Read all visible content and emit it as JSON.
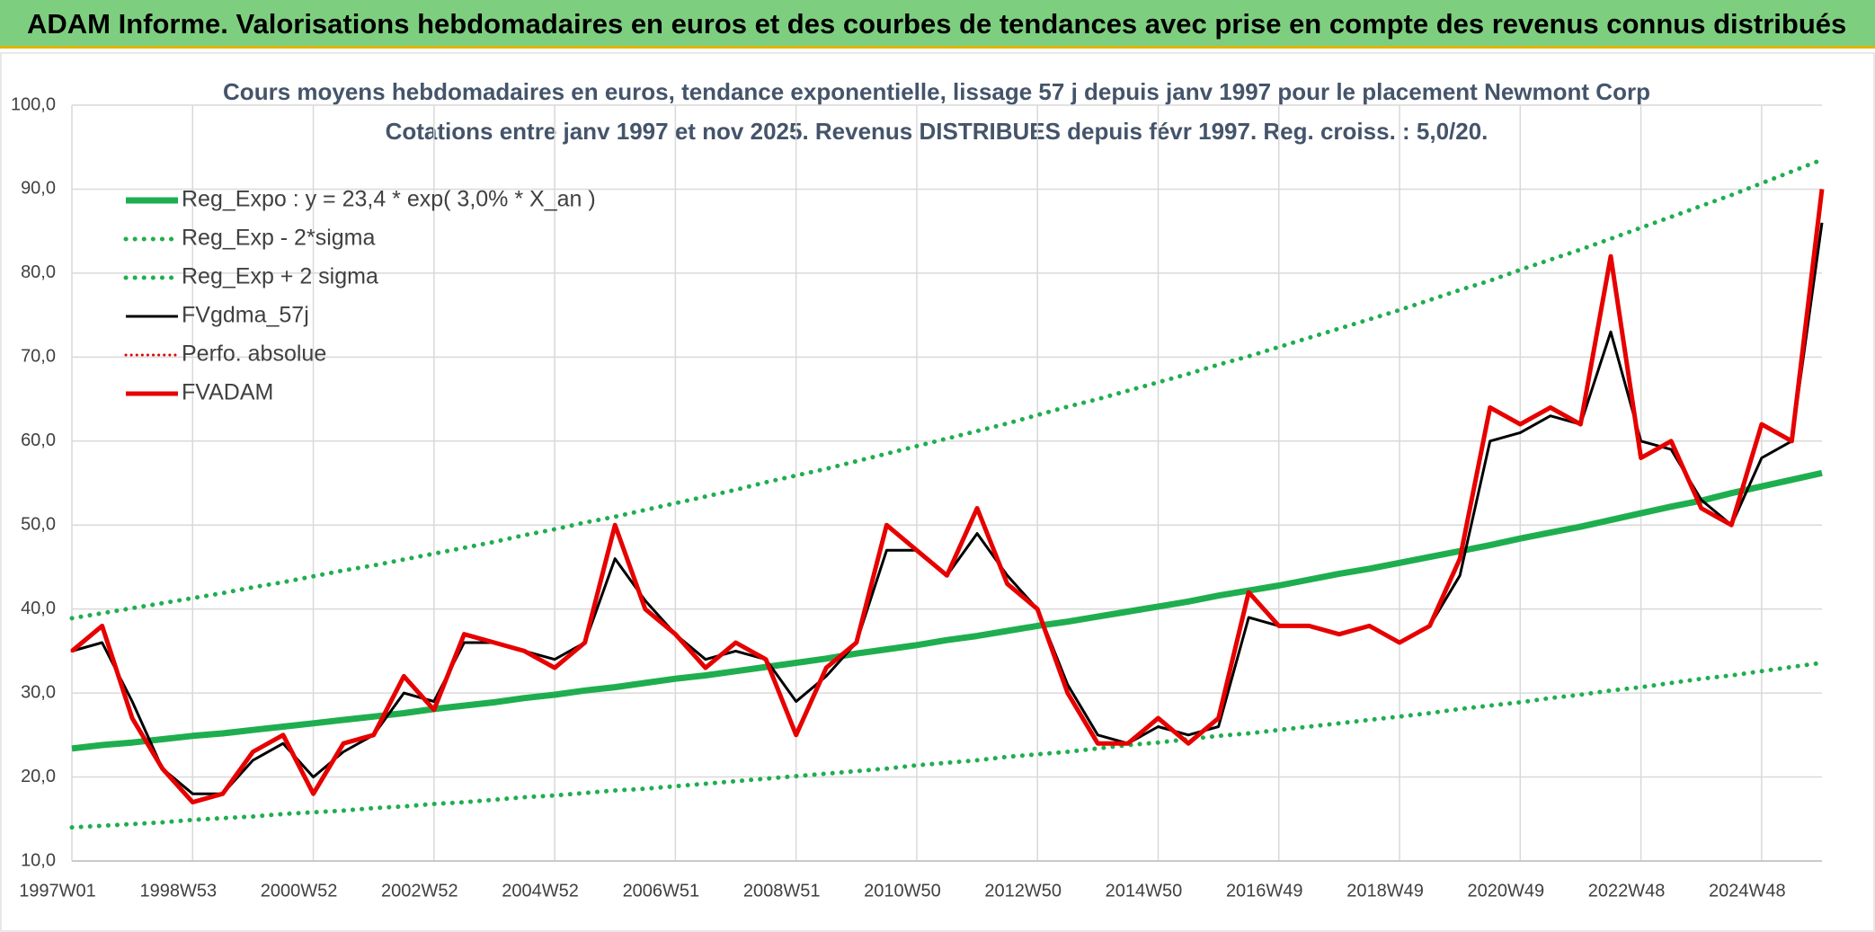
{
  "header": {
    "title": "ADAM Informe. Valorisations hebdomadaires en euros et des courbes de tendances avec prise en compte des revenus connus distribués"
  },
  "chart_data": {
    "type": "line",
    "title": "Cours moyens hebdomadaires en euros, tendance exponentielle, lissage 57 j depuis janv 1997 pour le placement Newmont Corp",
    "subtitle": "Cotations entre janv 1997 et nov 2025. Revenus DISTRIBUES depuis févr 1997. Reg. croiss. : 5,0/20.",
    "categories": [
      "1997W01",
      null,
      null,
      null,
      "1998W53",
      null,
      null,
      null,
      "2000W52",
      null,
      null,
      null,
      "2002W52",
      null,
      null,
      null,
      "2004W52",
      null,
      null,
      null,
      "2006W51",
      null,
      null,
      null,
      "2008W51",
      null,
      null,
      null,
      "2010W50",
      null,
      null,
      null,
      "2012W50",
      null,
      null,
      null,
      "2014W50",
      null,
      null,
      null,
      "2016W49",
      null,
      null,
      null,
      "2018W49",
      null,
      null,
      null,
      "2020W49",
      null,
      null,
      null,
      "2022W48",
      null,
      null,
      null,
      "2024W48",
      null,
      null
    ],
    "ylim": [
      10,
      100
    ],
    "yticks": [
      {
        "value": 10,
        "label": "10,0"
      },
      {
        "value": 20,
        "label": "20,0"
      },
      {
        "value": 30,
        "label": "30,0"
      },
      {
        "value": 40,
        "label": "40,0"
      },
      {
        "value": 50,
        "label": "50,0"
      },
      {
        "value": 60,
        "label": "60,0"
      },
      {
        "value": 70,
        "label": "70,0"
      },
      {
        "value": 80,
        "label": "80,0"
      },
      {
        "value": 90,
        "label": "90,0"
      },
      {
        "value": 100,
        "label": "100,0"
      }
    ],
    "grid": true,
    "legend": "top-left",
    "series": [
      {
        "name": "Reg_Expo : y = 23,4 * exp( 3,0% *  X_an )",
        "color": "#1fae4f",
        "style": "solid",
        "width": 7,
        "values": [
          23.4,
          23.8,
          24.1,
          24.5,
          24.9,
          25.2,
          25.6,
          26.0,
          26.4,
          26.8,
          27.2,
          27.6,
          28.1,
          28.5,
          28.9,
          29.4,
          29.8,
          30.3,
          30.7,
          31.2,
          31.7,
          32.1,
          32.6,
          33.1,
          33.6,
          34.1,
          34.7,
          35.2,
          35.7,
          36.3,
          36.8,
          37.4,
          38.0,
          38.5,
          39.1,
          39.7,
          40.3,
          40.9,
          41.6,
          42.2,
          42.8,
          43.5,
          44.2,
          44.8,
          45.5,
          46.2,
          46.9,
          47.6,
          48.4,
          49.1,
          49.8,
          50.6,
          51.4,
          52.2,
          52.9,
          53.8,
          54.6,
          55.4,
          56.2
        ]
      },
      {
        "name": "Reg_Exp - 2*sigma",
        "color": "#1fae4f",
        "style": "dotted",
        "width": 5,
        "values": [
          14.0,
          14.2,
          14.4,
          14.6,
          14.9,
          15.1,
          15.3,
          15.6,
          15.8,
          16.0,
          16.3,
          16.5,
          16.8,
          17.0,
          17.3,
          17.6,
          17.8,
          18.1,
          18.4,
          18.6,
          18.9,
          19.2,
          19.5,
          19.8,
          20.1,
          20.4,
          20.7,
          21.0,
          21.4,
          21.7,
          22.0,
          22.4,
          22.7,
          23.0,
          23.4,
          23.8,
          24.1,
          24.5,
          24.9,
          25.2,
          25.6,
          26.0,
          26.4,
          26.8,
          27.2,
          27.6,
          28.1,
          28.5,
          28.9,
          29.4,
          29.8,
          30.3,
          30.7,
          31.2,
          31.7,
          32.1,
          32.6,
          33.1,
          33.6
        ]
      },
      {
        "name": "Reg_Exp + 2 sigma",
        "color": "#1fae4f",
        "style": "dotted",
        "width": 5,
        "values": [
          38.9,
          39.5,
          40.1,
          40.7,
          41.3,
          41.9,
          42.6,
          43.2,
          43.9,
          44.6,
          45.2,
          45.9,
          46.6,
          47.3,
          48.0,
          48.8,
          49.5,
          50.3,
          51.0,
          51.8,
          52.6,
          53.4,
          54.2,
          55.1,
          55.9,
          56.7,
          57.6,
          58.5,
          59.4,
          60.3,
          61.2,
          62.1,
          63.1,
          64.1,
          65.0,
          66.0,
          67.0,
          68.0,
          69.1,
          70.1,
          71.2,
          72.3,
          73.4,
          74.5,
          75.6,
          76.8,
          78.0,
          79.1,
          80.4,
          81.6,
          82.8,
          84.1,
          85.4,
          86.7,
          88.0,
          89.3,
          90.7,
          92.1,
          93.5
        ]
      },
      {
        "name": "FVgdma_57j",
        "color": "#000000",
        "style": "solid",
        "width": 3,
        "values": [
          35,
          36,
          29,
          21,
          18,
          18,
          22,
          24,
          20,
          23,
          25,
          30,
          29,
          36,
          36,
          35,
          34,
          36,
          46,
          41,
          37,
          34,
          35,
          34,
          29,
          32,
          36,
          47,
          47,
          44,
          49,
          44,
          40,
          31,
          25,
          24,
          26,
          25,
          26,
          39,
          38,
          38,
          37,
          38,
          36,
          38,
          44,
          60,
          61,
          63,
          62,
          73,
          60,
          59,
          53,
          50,
          58,
          60,
          86
        ]
      },
      {
        "name": "Perfo. absolue",
        "color": "#e60000",
        "style": "dotted",
        "width": 3,
        "values": [
          35,
          38,
          27,
          21,
          17,
          18,
          23,
          25,
          18,
          24,
          25,
          32,
          28,
          37,
          36,
          35,
          33,
          36,
          50,
          40,
          37,
          33,
          36,
          34,
          25,
          33,
          36,
          50,
          47,
          44,
          52,
          43,
          40,
          30,
          24,
          24,
          27,
          24,
          27,
          42,
          38,
          38,
          37,
          38,
          36,
          38,
          46,
          64,
          62,
          64,
          62,
          82,
          58,
          60,
          52,
          50,
          62,
          60,
          90
        ]
      },
      {
        "name": "FVADAM",
        "color": "#e60000",
        "style": "solid",
        "width": 5,
        "values": [
          35,
          38,
          27,
          21,
          17,
          18,
          23,
          25,
          18,
          24,
          25,
          32,
          28,
          37,
          36,
          35,
          33,
          36,
          50,
          40,
          37,
          33,
          36,
          34,
          25,
          33,
          36,
          50,
          47,
          44,
          52,
          43,
          40,
          30,
          24,
          24,
          27,
          24,
          27,
          42,
          38,
          38,
          37,
          38,
          36,
          38,
          46,
          64,
          62,
          64,
          62,
          82,
          58,
          60,
          52,
          50,
          62,
          60,
          90
        ]
      }
    ]
  }
}
